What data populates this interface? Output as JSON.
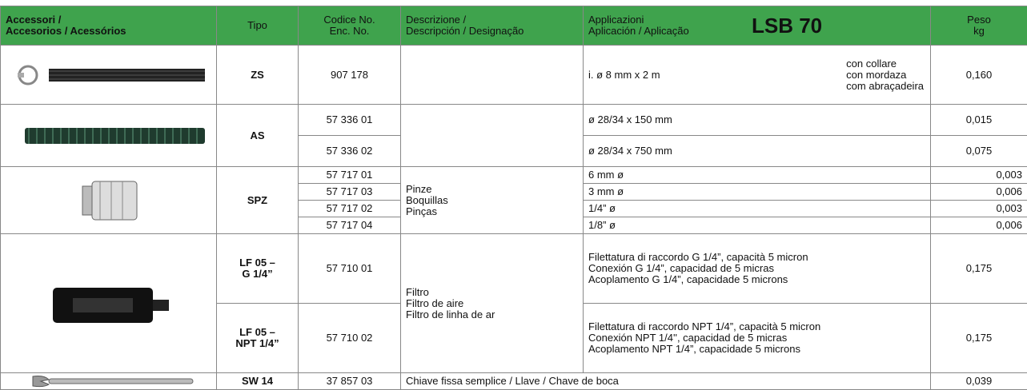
{
  "header": {
    "accessori": "Accessori /\nAccesorios / Acessórios",
    "tipo": "Tipo",
    "codice": "Codice No.\nEnc. No.",
    "descrizione": "Descrizione /\nDescripción / Designação",
    "applicazioni": "Applicazioni\nAplicación / Aplicação",
    "model": "LSB 70",
    "peso": "Peso\nkg"
  },
  "groups": [
    {
      "type": "ZS",
      "items": [
        {
          "code": "907 178",
          "application": "i. ø 8 mm x 2 m",
          "note": "con collare\ncon mordaza\ncom abraçadeira",
          "weight": "0,160"
        }
      ]
    },
    {
      "type": "AS",
      "items": [
        {
          "code": "57 336 01",
          "application": "ø 28/34 x 150 mm",
          "weight": "0,015"
        },
        {
          "code": "57 336 02",
          "application": "ø 28/34 x 750 mm",
          "weight": "0,075"
        }
      ]
    },
    {
      "type": "SPZ",
      "description": "Pinze\nBoquillas\nPinças",
      "items": [
        {
          "code": "57 717 01",
          "application": "6 mm ø",
          "weight": "0,003"
        },
        {
          "code": "57 717 03",
          "application": "3 mm ø",
          "weight": "0,006"
        },
        {
          "code": "57 717 02",
          "application": "1/4” ø",
          "weight": "0,003"
        },
        {
          "code": "57 717 04",
          "application": "1/8” ø",
          "weight": "0,006"
        }
      ]
    },
    {
      "description": "Filtro\nFiltro de aire\nFiltro de linha de ar",
      "items": [
        {
          "type": "LF 05 –\nG 1/4”",
          "code": "57 710 01",
          "application": "Filettatura di raccordo G 1/4”, capacità 5 micron\nConexión G 1/4”, capacidad de 5 micras\nAcoplamento G 1/4”, capacidade 5 microns",
          "weight": "0,175"
        },
        {
          "type": "LF 05 –\nNPT 1/4”",
          "code": "57 710 02",
          "application": "Filettatura di raccordo NPT 1/4”, capacità 5 micron\nConexión NPT 1/4'', capacidad de 5 micras\nAcoplamento NPT 1/4”, capacidade 5 microns",
          "weight": "0,175"
        }
      ]
    },
    {
      "type": "SW 14",
      "items": [
        {
          "code": "37 857 03",
          "description": "Chiave fissa semplice / Llave / Chave de boca",
          "weight": "0,039"
        }
      ]
    }
  ]
}
